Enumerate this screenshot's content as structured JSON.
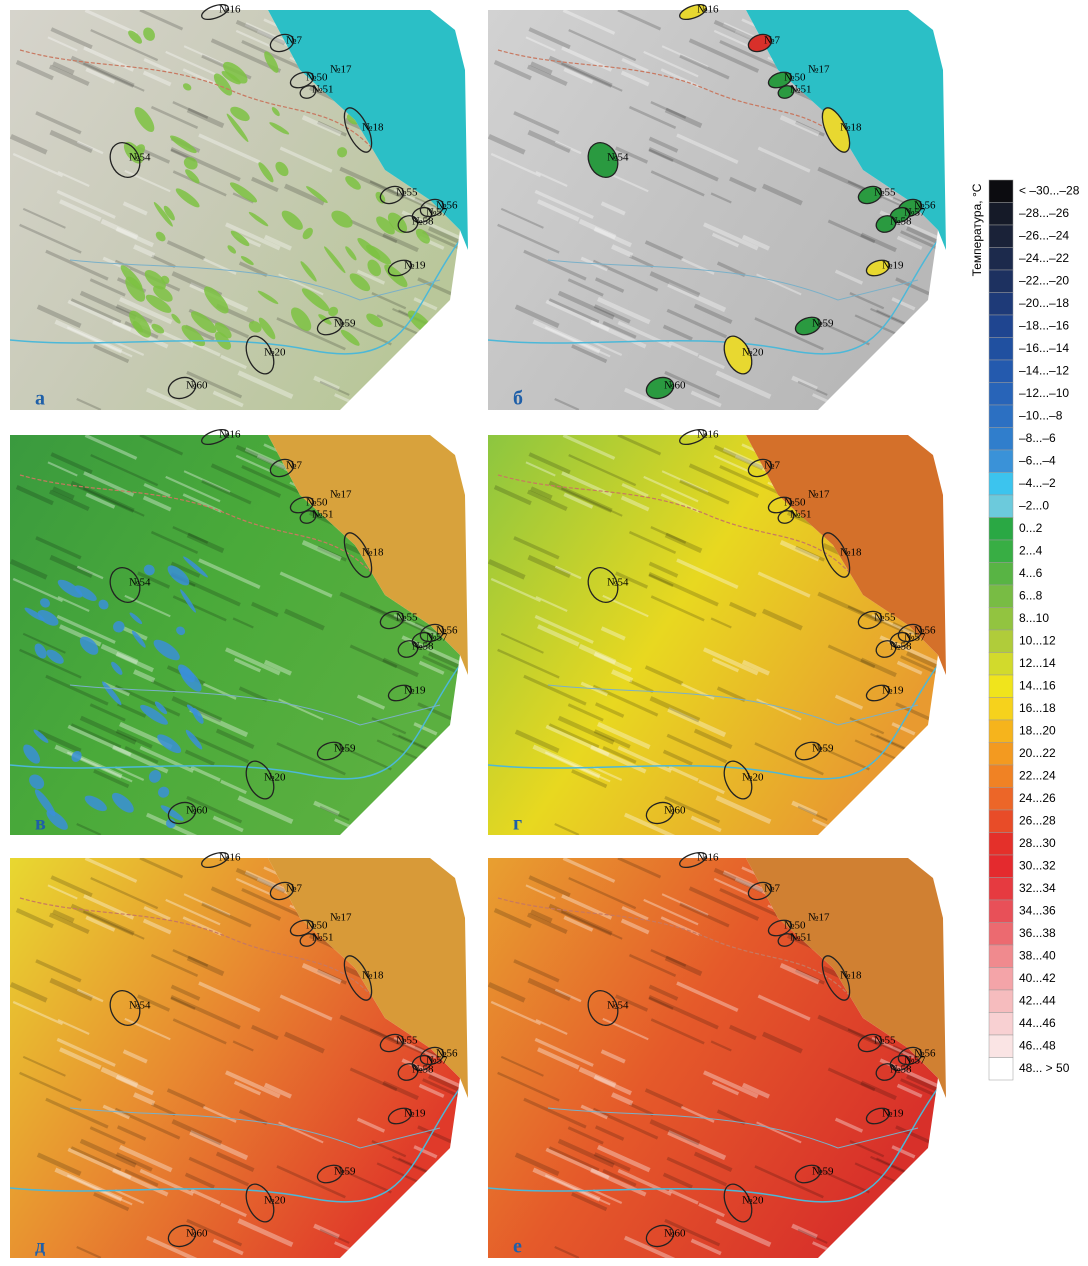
{
  "panels": [
    {
      "label": "а",
      "land": [
        "#d6d4cc",
        "#c9cbb8",
        "#b9c79a"
      ],
      "sea": "#2bbfc6",
      "patches": "#7cc242"
    },
    {
      "label": "б",
      "land": [
        "#d2d2d2",
        "#c4c4c4",
        "#b8b8b8"
      ],
      "sea": "#2bbfc6",
      "site_fills": [
        "#e8d830",
        "#d8302a",
        "#2a9a40",
        "#2a9a40",
        "#2a9a40",
        "#e8d830",
        "#2a9a40",
        "#2a9a40",
        "#2a9a40",
        "#2a9a40",
        "#2a9a40",
        "#e8d830",
        "#2a9a40",
        "#e8d830",
        "#2a9a40"
      ]
    },
    {
      "label": "в",
      "land": [
        "#3a9a3e",
        "#4aaa3a",
        "#5bb040"
      ],
      "sea": "#d8a23c",
      "patches": "#3a8fd8"
    },
    {
      "label": "г",
      "land": [
        "#8cc640",
        "#e8d820",
        "#e89a30"
      ],
      "sea": "#d4702a"
    },
    {
      "label": "д",
      "land": [
        "#e8d830",
        "#e88a30",
        "#e03a2a"
      ],
      "sea": "#d89a38"
    },
    {
      "label": "е",
      "land": [
        "#e8a030",
        "#e55a2a",
        "#d8302a"
      ],
      "sea": "#d08032"
    }
  ],
  "sites": [
    "№16",
    "№7",
    "№50",
    "№17",
    "№51",
    "№18",
    "№54",
    "№55",
    "№56",
    "№57",
    "№58",
    "№19",
    "№59",
    "№20",
    "№60"
  ],
  "legend": {
    "title": "Температура, °C",
    "items": [
      {
        "label": "< –30...–28",
        "color": "#0c0c10"
      },
      {
        "label": "–28...–26",
        "color": "#151a28"
      },
      {
        "label": "–26...–24",
        "color": "#1a2238"
      },
      {
        "label": "–24...–22",
        "color": "#1c2a4c"
      },
      {
        "label": "–22...–20",
        "color": "#1d3160"
      },
      {
        "label": "–20...–18",
        "color": "#1e3a78"
      },
      {
        "label": "–18...–16",
        "color": "#1f4590"
      },
      {
        "label": "–16...–14",
        "color": "#2050a0"
      },
      {
        "label": "–14...–12",
        "color": "#245aae"
      },
      {
        "label": "–12...–10",
        "color": "#2864b8"
      },
      {
        "label": "–10...–8",
        "color": "#2c70c2"
      },
      {
        "label": "–8...–6",
        "color": "#307ecc"
      },
      {
        "label": "–6...–4",
        "color": "#3a92d8"
      },
      {
        "label": "–4...–2",
        "color": "#3cc4ee"
      },
      {
        "label": "–2...0",
        "color": "#6ccadc"
      },
      {
        "label": "0...2",
        "color": "#2aa844"
      },
      {
        "label": "2...4",
        "color": "#38ae44"
      },
      {
        "label": "4...6",
        "color": "#58b444"
      },
      {
        "label": "6...8",
        "color": "#78bc44"
      },
      {
        "label": "8...10",
        "color": "#92c440"
      },
      {
        "label": "10...12",
        "color": "#b0cc3a"
      },
      {
        "label": "12...14",
        "color": "#d2da2c"
      },
      {
        "label": "14...16",
        "color": "#f0e41c"
      },
      {
        "label": "16...18",
        "color": "#f6d21c"
      },
      {
        "label": "18...20",
        "color": "#f6b41c"
      },
      {
        "label": "20...22",
        "color": "#f39a20"
      },
      {
        "label": "22...24",
        "color": "#f08224"
      },
      {
        "label": "24...26",
        "color": "#ec6628"
      },
      {
        "label": "26...28",
        "color": "#e84c28"
      },
      {
        "label": "28...30",
        "color": "#e4302a"
      },
      {
        "label": "30...32",
        "color": "#e42a2e"
      },
      {
        "label": "32...34",
        "color": "#e63a40"
      },
      {
        "label": "34...36",
        "color": "#e85058"
      },
      {
        "label": "36...38",
        "color": "#ec6a70"
      },
      {
        "label": "38...40",
        "color": "#f08a8e"
      },
      {
        "label": "40...42",
        "color": "#f4a4a8"
      },
      {
        "label": "42...44",
        "color": "#f6bcbe"
      },
      {
        "label": "44...46",
        "color": "#f8d0d2"
      },
      {
        "label": "46...48",
        "color": "#fae4e4"
      },
      {
        "label": "48... > 50",
        "color": "#ffffff"
      }
    ]
  }
}
